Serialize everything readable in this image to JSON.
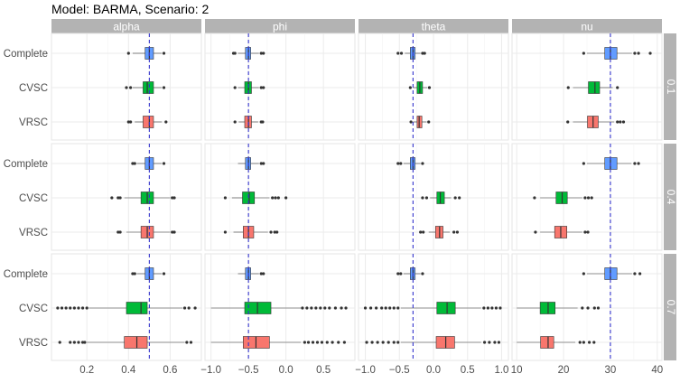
{
  "chart_data": {
    "type": "boxplot",
    "title": "Model: BARMA, Scenario: 2",
    "facet_columns": [
      "alpha",
      "phi",
      "theta",
      "nu"
    ],
    "facet_rows": [
      "0.1",
      "0.4",
      "0.7"
    ],
    "categories": [
      "Complete",
      "CVSC",
      "VRSC"
    ],
    "colors": {
      "Complete": "#619CFF",
      "CVSC": "#00BA38",
      "VRSC": "#F8766D"
    },
    "reference_lines": {
      "alpha": 0.5,
      "phi": -0.5,
      "theta": -0.3,
      "nu": 30
    },
    "x_axes": {
      "alpha": {
        "xlim": [
          0.03,
          0.75
        ],
        "ticks": [
          0.2,
          0.4,
          0.6
        ],
        "tick_labels": [
          "0.2",
          "0.4",
          "0.6"
        ]
      },
      "phi": {
        "xlim": [
          -1.08,
          0.92
        ],
        "ticks": [
          -1.0,
          -0.5,
          0.0,
          0.5
        ],
        "tick_labels": [
          "−1.0",
          "−0.5",
          "0.0",
          "0.5"
        ]
      },
      "theta": {
        "xlim": [
          -1.1,
          1.1
        ],
        "ticks": [
          -1.0,
          -0.5,
          0.0,
          0.5,
          1.0
        ],
        "tick_labels": [
          "−1.0",
          "−0.5",
          "0.0",
          "0.5",
          "1.0"
        ]
      },
      "nu": {
        "xlim": [
          9,
          41
        ],
        "ticks": [
          10,
          20,
          30,
          40
        ],
        "tick_labels": [
          "10",
          "20",
          "30",
          "40"
        ]
      }
    },
    "panels": [
      {
        "row": "0.1",
        "col": "alpha",
        "boxes": [
          {
            "cat": "Complete",
            "min": 0.42,
            "q1": 0.48,
            "median": 0.5,
            "q3": 0.52,
            "max": 0.56,
            "outliers": [
              0.4,
              0.57
            ]
          },
          {
            "cat": "CVSC",
            "min": 0.42,
            "q1": 0.47,
            "median": 0.49,
            "q3": 0.52,
            "max": 0.56,
            "outliers": [
              0.39,
              0.41,
              0.57
            ]
          },
          {
            "cat": "VRSC",
            "min": 0.43,
            "q1": 0.47,
            "median": 0.5,
            "q3": 0.52,
            "max": 0.56,
            "outliers": [
              0.4,
              0.41,
              0.58
            ]
          }
        ]
      },
      {
        "row": "0.1",
        "col": "phi",
        "boxes": [
          {
            "cat": "Complete",
            "min": -0.64,
            "q1": -0.54,
            "median": -0.5,
            "q3": -0.47,
            "max": -0.36,
            "outliers": [
              -0.7,
              -0.68,
              -0.33,
              -0.3
            ]
          },
          {
            "cat": "CVSC",
            "min": -0.64,
            "q1": -0.55,
            "median": -0.5,
            "q3": -0.46,
            "max": -0.36,
            "outliers": [
              -0.68,
              -0.33,
              -0.3
            ]
          },
          {
            "cat": "VRSC",
            "min": -0.63,
            "q1": -0.55,
            "median": -0.5,
            "q3": -0.46,
            "max": -0.37,
            "outliers": [
              -0.68,
              -0.33,
              -0.31
            ]
          }
        ]
      },
      {
        "row": "0.1",
        "col": "theta",
        "boxes": [
          {
            "cat": "Complete",
            "min": -0.42,
            "q1": -0.34,
            "median": -0.3,
            "q3": -0.27,
            "max": -0.19,
            "outliers": [
              -0.52,
              -0.47,
              -0.16,
              -0.13
            ]
          },
          {
            "cat": "CVSC",
            "min": -0.3,
            "q1": -0.24,
            "median": -0.2,
            "q3": -0.16,
            "max": -0.09,
            "outliers": [
              -0.34,
              -0.06
            ]
          },
          {
            "cat": "VRSC",
            "min": -0.3,
            "q1": -0.24,
            "median": -0.21,
            "q3": -0.17,
            "max": -0.1,
            "outliers": [
              -0.33,
              -0.07
            ]
          }
        ]
      },
      {
        "row": "0.1",
        "col": "nu",
        "boxes": [
          {
            "cat": "Complete",
            "min": 25.0,
            "q1": 28.8,
            "median": 30.0,
            "q3": 31.4,
            "max": 34.6,
            "outliers": [
              24.3,
              35.2,
              36.0,
              38.5
            ]
          },
          {
            "cat": "CVSC",
            "min": 22.0,
            "q1": 25.3,
            "median": 26.7,
            "q3": 27.7,
            "max": 30.5,
            "outliers": [
              21.0,
              31.5
            ]
          },
          {
            "cat": "VRSC",
            "min": 22.0,
            "q1": 25.1,
            "median": 26.3,
            "q3": 27.4,
            "max": 30.8,
            "outliers": [
              20.9,
              31.5,
              32.1,
              32.8
            ]
          }
        ]
      },
      {
        "row": "0.4",
        "col": "alpha",
        "boxes": [
          {
            "cat": "Complete",
            "min": 0.44,
            "q1": 0.48,
            "median": 0.5,
            "q3": 0.52,
            "max": 0.56,
            "outliers": [
              0.42,
              0.43,
              0.57
            ]
          },
          {
            "cat": "CVSC",
            "min": 0.38,
            "q1": 0.46,
            "median": 0.49,
            "q3": 0.52,
            "max": 0.6,
            "outliers": [
              0.32,
              0.35,
              0.36,
              0.61,
              0.62
            ]
          },
          {
            "cat": "VRSC",
            "min": 0.39,
            "q1": 0.46,
            "median": 0.49,
            "q3": 0.52,
            "max": 0.6,
            "outliers": [
              0.35,
              0.36,
              0.61,
              0.62
            ]
          }
        ]
      },
      {
        "row": "0.4",
        "col": "phi",
        "boxes": [
          {
            "cat": "Complete",
            "min": -0.64,
            "q1": -0.54,
            "median": -0.5,
            "q3": -0.47,
            "max": -0.36,
            "outliers": [
              -0.33,
              -0.3
            ]
          },
          {
            "cat": "CVSC",
            "min": -0.72,
            "q1": -0.58,
            "median": -0.49,
            "q3": -0.42,
            "max": -0.22,
            "outliers": [
              -0.81,
              -0.18,
              -0.14,
              -0.1,
              0.0
            ]
          },
          {
            "cat": "VRSC",
            "min": -0.7,
            "q1": -0.57,
            "median": -0.5,
            "q3": -0.43,
            "max": -0.24,
            "outliers": [
              -0.81,
              -0.2,
              -0.15,
              -0.12
            ]
          }
        ]
      },
      {
        "row": "0.4",
        "col": "theta",
        "boxes": [
          {
            "cat": "Complete",
            "min": -0.44,
            "q1": -0.34,
            "median": -0.3,
            "q3": -0.27,
            "max": -0.19,
            "outliers": [
              -0.52,
              -0.48,
              -0.16
            ]
          },
          {
            "cat": "CVSC",
            "min": -0.05,
            "q1": 0.05,
            "median": 0.1,
            "q3": 0.16,
            "max": 0.26,
            "outliers": [
              -0.16,
              -0.1,
              0.32,
              0.38
            ]
          },
          {
            "cat": "VRSC",
            "min": -0.07,
            "q1": 0.03,
            "median": 0.09,
            "q3": 0.14,
            "max": 0.24,
            "outliers": [
              -0.19,
              -0.15,
              0.3,
              0.35
            ]
          }
        ]
      },
      {
        "row": "0.4",
        "col": "nu",
        "boxes": [
          {
            "cat": "Complete",
            "min": 25.0,
            "q1": 28.8,
            "median": 30.0,
            "q3": 31.4,
            "max": 34.5,
            "outliers": [
              24.3,
              35.2,
              36.0
            ]
          },
          {
            "cat": "CVSC",
            "min": 15.0,
            "q1": 18.4,
            "median": 19.7,
            "q3": 20.8,
            "max": 24.0,
            "outliers": [
              13.8,
              24.6,
              25.3,
              26.0
            ]
          },
          {
            "cat": "VRSC",
            "min": 15.0,
            "q1": 18.1,
            "median": 19.4,
            "q3": 20.7,
            "max": 24.0,
            "outliers": [
              14.0,
              24.6,
              25.2
            ]
          }
        ]
      },
      {
        "row": "0.7",
        "col": "alpha",
        "boxes": [
          {
            "cat": "Complete",
            "min": 0.44,
            "q1": 0.48,
            "median": 0.5,
            "q3": 0.52,
            "max": 0.56,
            "outliers": [
              0.42,
              0.43,
              0.57
            ]
          },
          {
            "cat": "CVSC",
            "min": 0.21,
            "q1": 0.39,
            "median": 0.46,
            "q3": 0.49,
            "max": 0.66,
            "outliers": [
              0.06,
              0.08,
              0.1,
              0.12,
              0.14,
              0.16,
              0.18,
              0.2,
              0.67,
              0.69,
              0.72
            ]
          },
          {
            "cat": "VRSC",
            "min": 0.2,
            "q1": 0.38,
            "median": 0.44,
            "q3": 0.49,
            "max": 0.67,
            "outliers": [
              0.07,
              0.12,
              0.14,
              0.16,
              0.18,
              0.19,
              0.68,
              0.7
            ]
          }
        ]
      },
      {
        "row": "0.7",
        "col": "phi",
        "boxes": [
          {
            "cat": "Complete",
            "min": -0.64,
            "q1": -0.54,
            "median": -0.5,
            "q3": -0.47,
            "max": -0.36,
            "outliers": [
              -0.33,
              -0.3
            ]
          },
          {
            "cat": "CVSC",
            "min": -1.0,
            "q1": -0.55,
            "median": -0.38,
            "q3": -0.2,
            "max": 0.2,
            "outliers": [
              0.22,
              0.28,
              0.34,
              0.4,
              0.46,
              0.52,
              0.58,
              0.66,
              0.74,
              0.8
            ]
          },
          {
            "cat": "VRSC",
            "min": -1.0,
            "q1": -0.57,
            "median": -0.4,
            "q3": -0.22,
            "max": 0.2,
            "outliers": [
              0.25,
              0.3,
              0.36,
              0.42,
              0.48,
              0.55,
              0.62,
              0.7,
              0.78
            ]
          }
        ]
      },
      {
        "row": "0.7",
        "col": "theta",
        "boxes": [
          {
            "cat": "Complete",
            "min": -0.44,
            "q1": -0.34,
            "median": -0.3,
            "q3": -0.27,
            "max": -0.19,
            "outliers": [
              -0.52,
              -0.48,
              -0.16
            ]
          },
          {
            "cat": "CVSC",
            "min": -0.48,
            "q1": 0.05,
            "median": 0.2,
            "q3": 0.32,
            "max": 0.7,
            "outliers": [
              -1.0,
              -0.92,
              -0.84,
              -0.76,
              -0.7,
              -0.64,
              -0.58,
              -0.52,
              0.74,
              0.8,
              0.86,
              0.92,
              0.98
            ]
          },
          {
            "cat": "VRSC",
            "min": -0.48,
            "q1": 0.04,
            "median": 0.18,
            "q3": 0.31,
            "max": 0.7,
            "outliers": [
              -0.98,
              -0.9,
              -0.82,
              -0.74,
              -0.66,
              -0.58,
              -0.52,
              0.75,
              0.82,
              0.9,
              0.96
            ]
          }
        ]
      },
      {
        "row": "0.7",
        "col": "nu",
        "boxes": [
          {
            "cat": "Complete",
            "min": 25.0,
            "q1": 28.8,
            "median": 30.0,
            "q3": 31.4,
            "max": 34.6,
            "outliers": [
              24.3,
              35.2,
              36.3
            ]
          },
          {
            "cat": "CVSC",
            "min": 10.0,
            "q1": 15.0,
            "median": 16.7,
            "q3": 18.2,
            "max": 23.0,
            "outliers": [
              24.0,
              25.2,
              26.6,
              27.4
            ]
          },
          {
            "cat": "VRSC",
            "min": 10.0,
            "q1": 15.1,
            "median": 16.7,
            "q3": 17.9,
            "max": 22.5,
            "outliers": [
              23.5,
              24.3,
              25.5,
              26.5
            ]
          }
        ]
      }
    ]
  }
}
